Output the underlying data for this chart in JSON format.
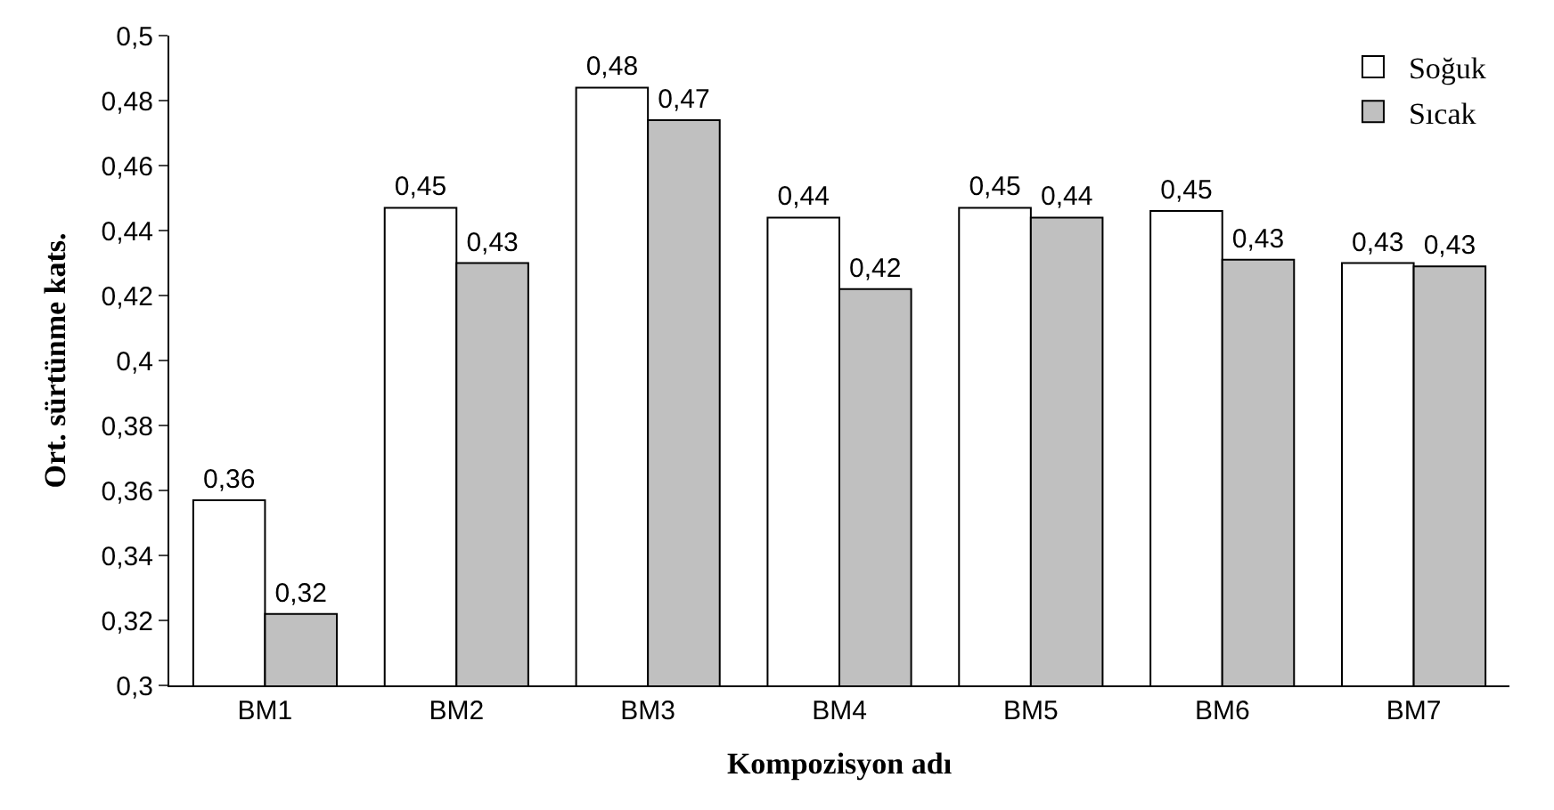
{
  "chart_data": {
    "type": "bar",
    "xlabel": "Kompozisyon adı",
    "ylabel": "Ort. sürtünme kats.",
    "categories": [
      "BM1",
      "BM2",
      "BM3",
      "BM4",
      "BM5",
      "BM6",
      "BM7"
    ],
    "series": [
      {
        "name": "Soğuk",
        "color": "#ffffff",
        "values": [
          0.357,
          0.447,
          0.484,
          0.444,
          0.447,
          0.446,
          0.43
        ],
        "value_labels": [
          "0,36",
          "0,45",
          "0,48",
          "0,44",
          "0,45",
          "0,45",
          "0,43"
        ]
      },
      {
        "name": "Sıcak",
        "color": "#c0c0c0",
        "values": [
          0.322,
          0.43,
          0.474,
          0.422,
          0.444,
          0.431,
          0.429
        ],
        "value_labels": [
          "0,32",
          "0,43",
          "0,47",
          "0,42",
          "0,44",
          "0,43",
          "0,43"
        ]
      }
    ],
    "ylim": [
      0.3,
      0.5
    ],
    "yticks": [
      {
        "value": 0.3,
        "label": "0,3"
      },
      {
        "value": 0.32,
        "label": "0,32"
      },
      {
        "value": 0.34,
        "label": "0,34"
      },
      {
        "value": 0.36,
        "label": "0,36"
      },
      {
        "value": 0.38,
        "label": "0,38"
      },
      {
        "value": 0.4,
        "label": "0,4"
      },
      {
        "value": 0.42,
        "label": "0,42"
      },
      {
        "value": 0.44,
        "label": "0,44"
      },
      {
        "value": 0.46,
        "label": "0,46"
      },
      {
        "value": 0.48,
        "label": "0,48"
      },
      {
        "value": 0.5,
        "label": "0,5"
      }
    ],
    "legend": "top right"
  }
}
